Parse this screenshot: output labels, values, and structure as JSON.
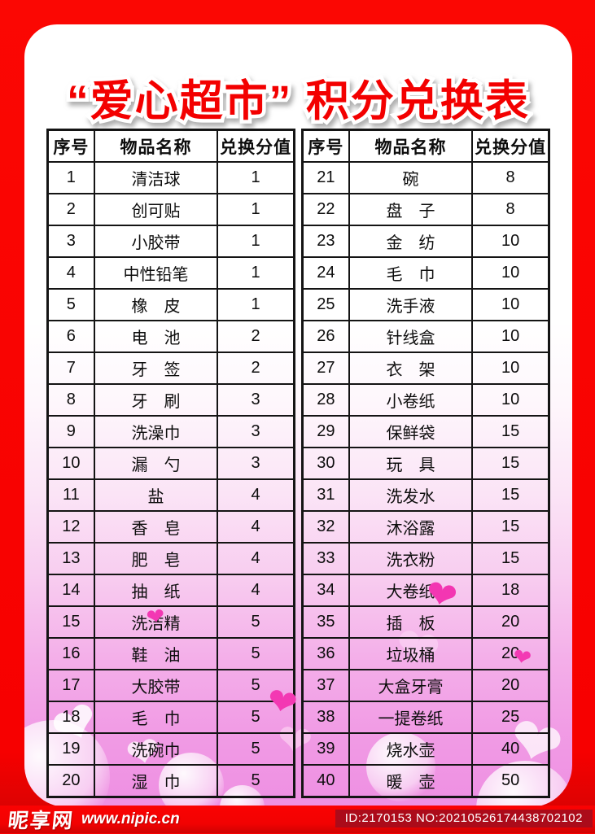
{
  "title": "“爱心超市” 积分兑换表",
  "tables": [
    {
      "headers": [
        "序号",
        "物品名称",
        "兑换分值"
      ],
      "rows": [
        [
          "1",
          "清洁球",
          "1"
        ],
        [
          "2",
          "创可贴",
          "1"
        ],
        [
          "3",
          "小胶带",
          "1"
        ],
        [
          "4",
          "中性铅笔",
          "1"
        ],
        [
          "5",
          "橡　皮",
          "1"
        ],
        [
          "6",
          "电　池",
          "2"
        ],
        [
          "7",
          "牙　签",
          "2"
        ],
        [
          "8",
          "牙　刷",
          "3"
        ],
        [
          "9",
          "洗澡巾",
          "3"
        ],
        [
          "10",
          "漏　勺",
          "3"
        ],
        [
          "11",
          "盐　　",
          "4"
        ],
        [
          "12",
          "香　皂",
          "4"
        ],
        [
          "13",
          "肥　皂",
          "4"
        ],
        [
          "14",
          "抽　纸",
          "4"
        ],
        [
          "15",
          "洗洁精",
          "5"
        ],
        [
          "16",
          "鞋　油",
          "5"
        ],
        [
          "17",
          "大胶带",
          "5"
        ],
        [
          "18",
          "毛　巾",
          "5"
        ],
        [
          "19",
          "洗碗巾",
          "5"
        ],
        [
          "20",
          "湿　巾",
          "5"
        ]
      ]
    },
    {
      "headers": [
        "序号",
        "物品名称",
        "兑换分值"
      ],
      "rows": [
        [
          "21",
          "碗　　",
          "8"
        ],
        [
          "22",
          "盘　子",
          "8"
        ],
        [
          "23",
          "金　纺",
          "10"
        ],
        [
          "24",
          "毛　巾",
          "10"
        ],
        [
          "25",
          "洗手液",
          "10"
        ],
        [
          "26",
          "针线盒",
          "10"
        ],
        [
          "27",
          "衣　架",
          "10"
        ],
        [
          "28",
          "小卷纸",
          "10"
        ],
        [
          "29",
          "保鲜袋",
          "15"
        ],
        [
          "30",
          "玩　具",
          "15"
        ],
        [
          "31",
          "洗发水",
          "15"
        ],
        [
          "32",
          "沐浴露",
          "15"
        ],
        [
          "33",
          "洗衣粉",
          "15"
        ],
        [
          "34",
          "大卷纸",
          "18"
        ],
        [
          "35",
          "插　板",
          "20"
        ],
        [
          "36",
          "垃圾桶",
          "20"
        ],
        [
          "37",
          "大盒牙膏",
          "20"
        ],
        [
          "38",
          "一提卷纸",
          "25"
        ],
        [
          "39",
          "烧水壶",
          "40"
        ],
        [
          "40",
          "暖　壶",
          "50"
        ]
      ]
    }
  ],
  "footer": {
    "logo_cn": "昵享网",
    "logo_url": "www.nipic.cn",
    "id_text": "ID:2170153 NO:20210526174438702102"
  },
  "icons": {
    "heart": "❤"
  },
  "colors": {
    "frame_red": "#f70000",
    "title_red": "#f30000",
    "table_border": "#141414",
    "gradient_pink_bottom": "#ee8fe2",
    "heart_magenta": "#f338b3",
    "id_badge_red": "#a50c1c"
  }
}
